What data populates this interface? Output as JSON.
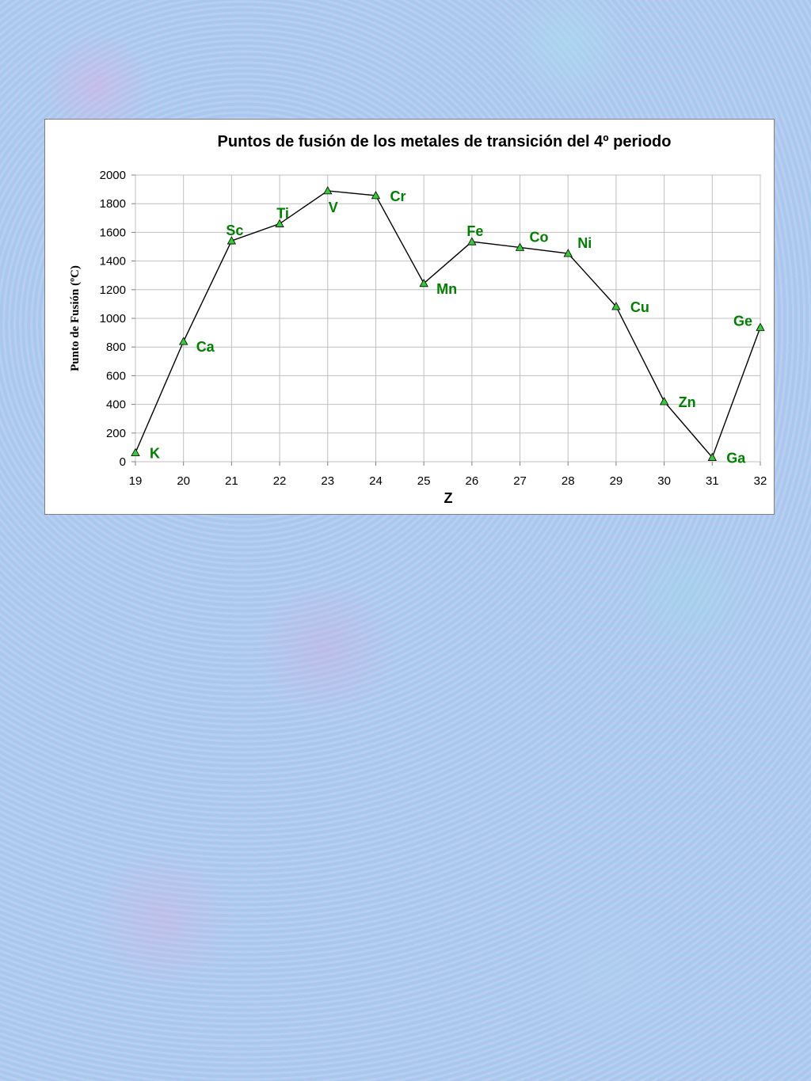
{
  "chart_data": {
    "type": "line",
    "title": "Puntos de fusión de los metales de transición del 4º periodo",
    "xlabel": "Z",
    "ylabel": "Punto de Fusión (ºC)",
    "xlim": [
      19,
      32
    ],
    "ylim": [
      0,
      2000
    ],
    "x_ticks": [
      "19",
      "20",
      "21",
      "22",
      "23",
      "24",
      "25",
      "26",
      "27",
      "28",
      "29",
      "30",
      "31",
      "32"
    ],
    "y_ticks": [
      "0",
      "200",
      "400",
      "600",
      "800",
      "1000",
      "1200",
      "1400",
      "1600",
      "1800",
      "2000"
    ],
    "grid": true,
    "legend": "none",
    "line_color": "#000000",
    "marker_color": "#33cc33",
    "label_color": "#008000",
    "series": [
      {
        "points": [
          {
            "x": 19,
            "y": 63,
            "label": "K",
            "label_pos": "right"
          },
          {
            "x": 20,
            "y": 839,
            "label": "Ca",
            "label_pos": "below-right"
          },
          {
            "x": 21,
            "y": 1541,
            "label": "Sc",
            "label_pos": "above"
          },
          {
            "x": 22,
            "y": 1660,
            "label": "Ti",
            "label_pos": "above"
          },
          {
            "x": 23,
            "y": 1890,
            "label": "V",
            "label_pos": "below"
          },
          {
            "x": 24,
            "y": 1857,
            "label": "Cr",
            "label_pos": "right"
          },
          {
            "x": 25,
            "y": 1244,
            "label": "Mn",
            "label_pos": "below-right"
          },
          {
            "x": 26,
            "y": 1535,
            "label": "Fe",
            "label_pos": "above"
          },
          {
            "x": 27,
            "y": 1495,
            "label": "Co",
            "label_pos": "above-right"
          },
          {
            "x": 28,
            "y": 1453,
            "label": "Ni",
            "label_pos": "above-right"
          },
          {
            "x": 29,
            "y": 1083,
            "label": "Cu",
            "label_pos": "right"
          },
          {
            "x": 30,
            "y": 420,
            "label": "Zn",
            "label_pos": "right"
          },
          {
            "x": 31,
            "y": 30,
            "label": "Ga",
            "label_pos": "right"
          },
          {
            "x": 32,
            "y": 937,
            "label": "Ge",
            "label_pos": "left"
          }
        ]
      }
    ]
  }
}
